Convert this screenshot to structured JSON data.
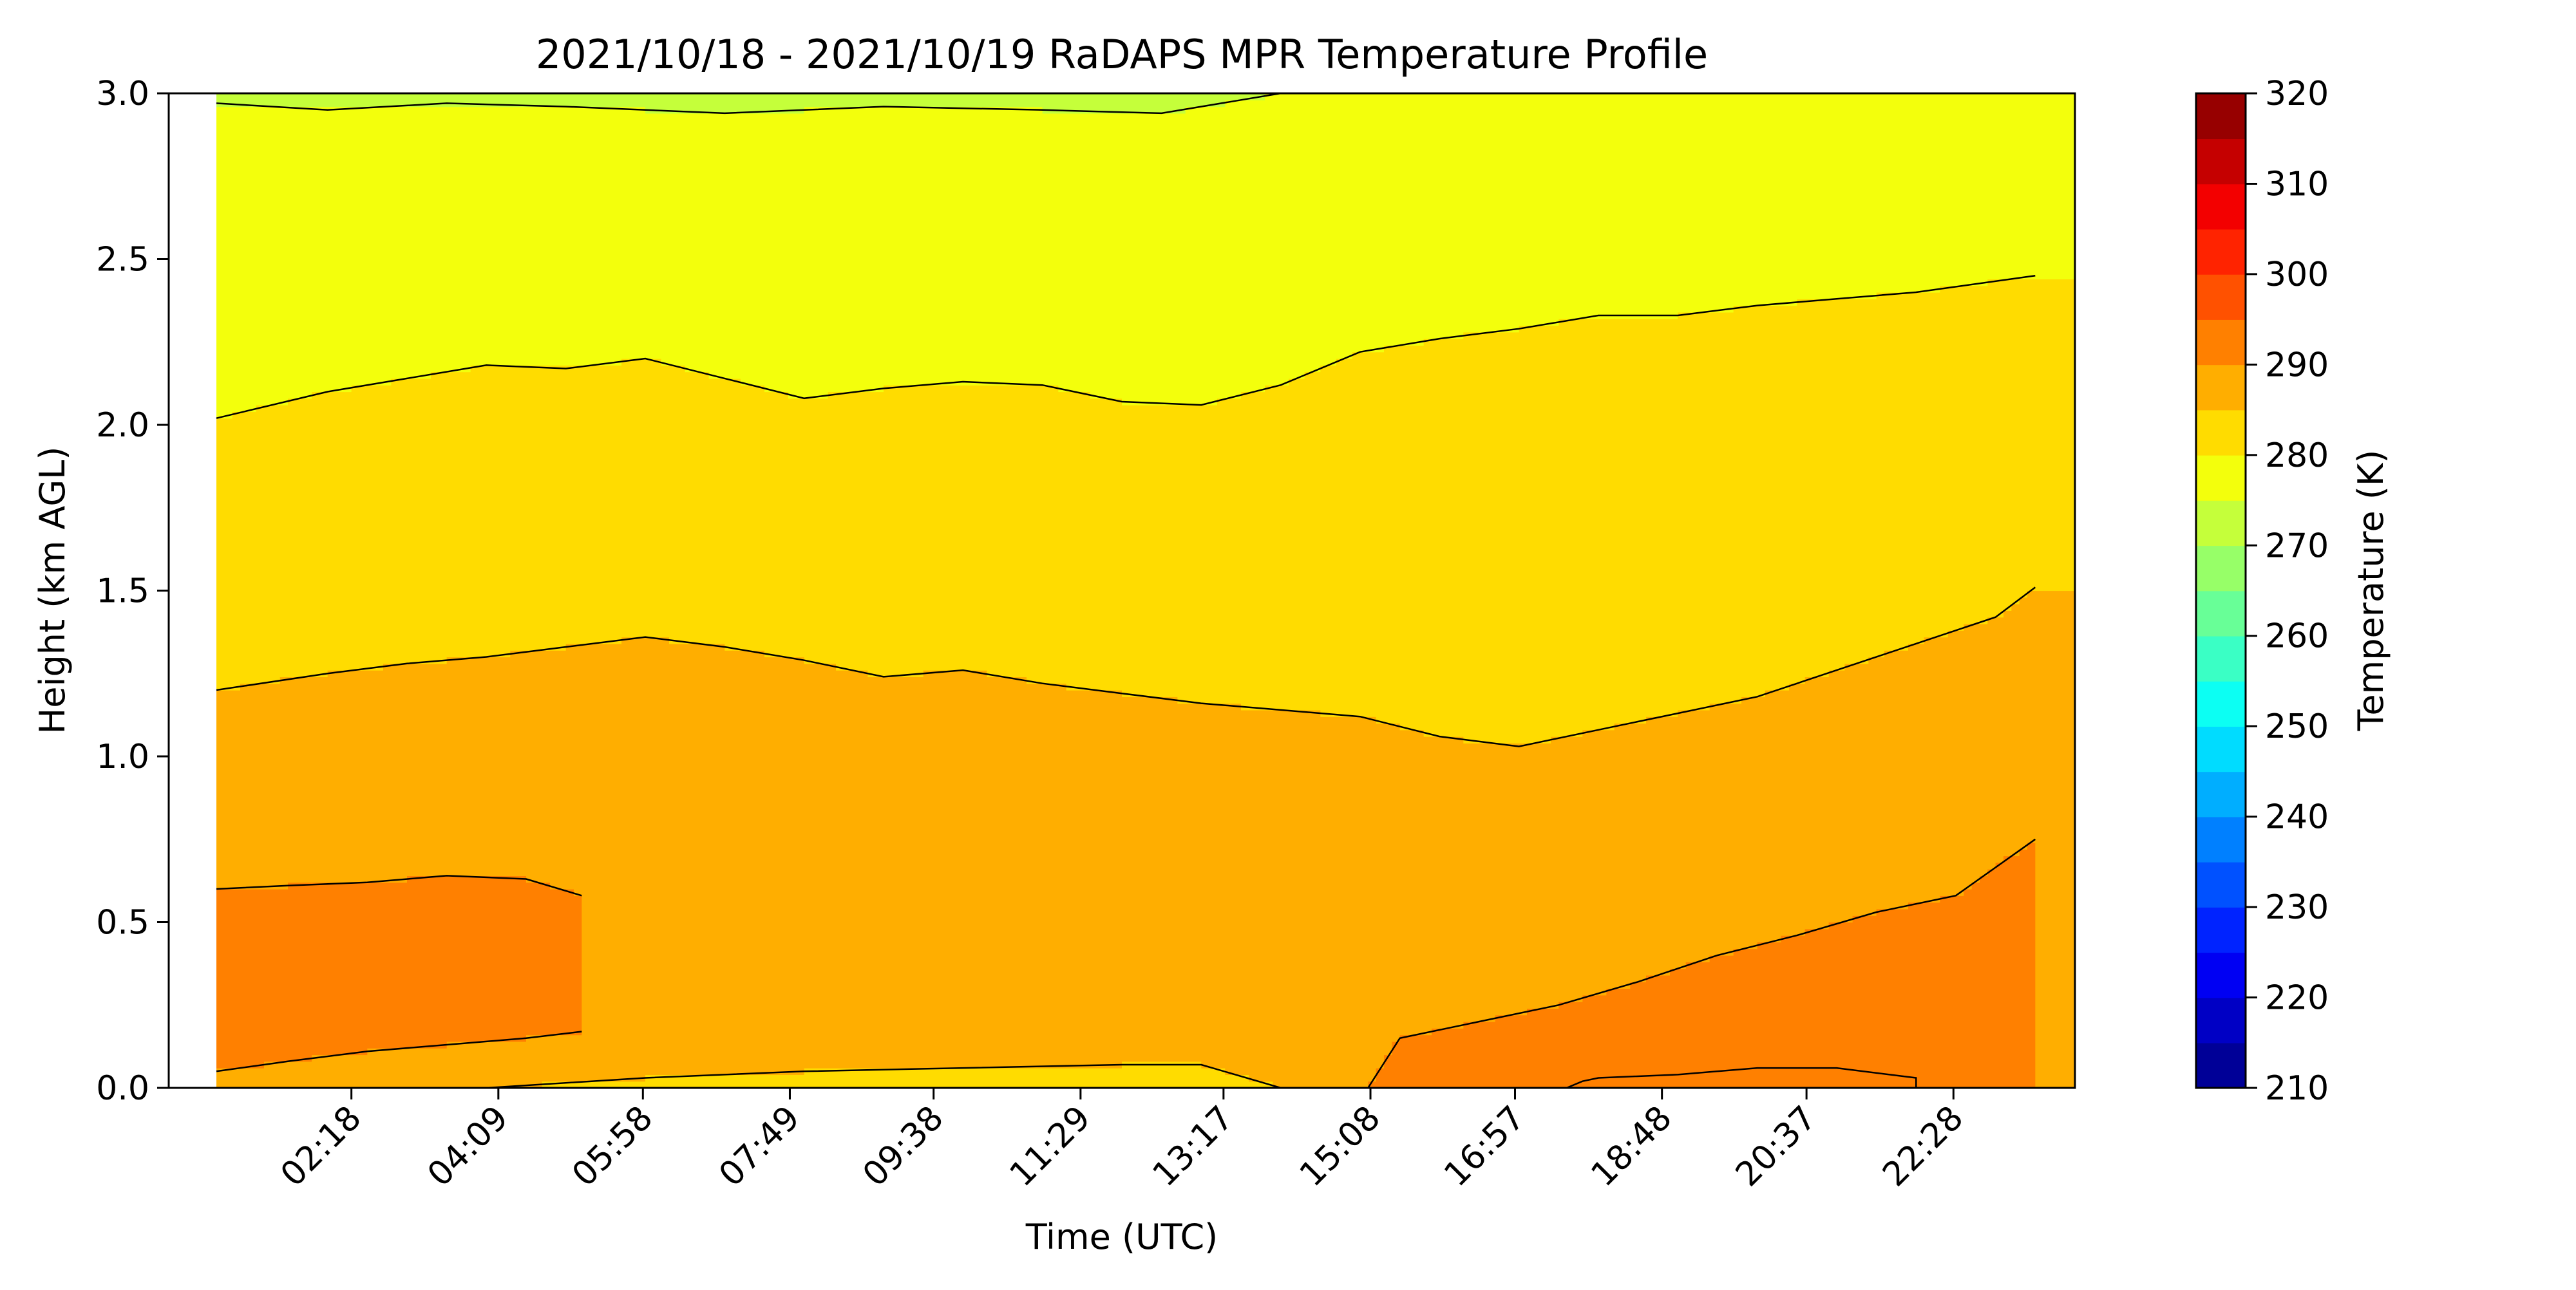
{
  "chart_data": {
    "type": "contourf",
    "title": "2021/10/18 - 2021/10/19 RaDAPS MPR Temperature Profile",
    "xlabel": "Time (UTC)",
    "ylabel": "Height (km AGL)",
    "x_tick_labels": [
      "02:18",
      "04:09",
      "05:58",
      "07:49",
      "09:38",
      "11:29",
      "13:17",
      "15:08",
      "16:57",
      "18:48",
      "20:37",
      "22:28"
    ],
    "x_tick_hours": [
      2.3,
      4.15,
      5.97,
      7.82,
      9.63,
      11.48,
      13.28,
      15.13,
      16.95,
      18.8,
      20.62,
      22.47
    ],
    "x_range_hours": [
      0.0,
      24.0
    ],
    "data_start_hour": 0.6,
    "y_ticks": [
      "0.0",
      "0.5",
      "1.0",
      "1.5",
      "2.0",
      "2.5",
      "3.0"
    ],
    "ylim": [
      0.0,
      3.0
    ],
    "colorbar": {
      "label": "Temperature (K)",
      "range": [
        210,
        320
      ],
      "step": 5,
      "tick_labels": [
        "210",
        "220",
        "230",
        "240",
        "250",
        "260",
        "270",
        "280",
        "290",
        "300",
        "310",
        "320"
      ],
      "colormap": "jet"
    },
    "contour_levels_k": [
      275,
      280,
      285,
      290,
      295
    ],
    "contour_boundaries": [
      {
        "name": "295 K",
        "points": [
          [
            22.0,
            0.0
          ],
          [
            22.0,
            0.03
          ],
          [
            21.0,
            0.06
          ],
          [
            20.0,
            0.06
          ],
          [
            19.0,
            0.04
          ],
          [
            18.0,
            0.03
          ],
          [
            17.8,
            0.02
          ],
          [
            17.6,
            0.0
          ]
        ]
      },
      {
        "name": "290 K upper",
        "points": [
          [
            0.6,
            0.6
          ],
          [
            1.5,
            0.61
          ],
          [
            2.5,
            0.62
          ],
          [
            3.5,
            0.64
          ],
          [
            4.5,
            0.63
          ],
          [
            5.2,
            0.58
          ]
        ]
      },
      {
        "name": "290 K lower",
        "points": [
          [
            0.6,
            0.05
          ],
          [
            1.5,
            0.08
          ],
          [
            2.5,
            0.11
          ],
          [
            3.5,
            0.13
          ],
          [
            4.5,
            0.15
          ],
          [
            5.2,
            0.17
          ]
        ]
      },
      {
        "name": "290 K east",
        "points": [
          [
            15.1,
            0.0
          ],
          [
            15.5,
            0.15
          ],
          [
            16.5,
            0.2
          ],
          [
            17.5,
            0.25
          ],
          [
            18.5,
            0.32
          ],
          [
            19.5,
            0.4
          ],
          [
            20.5,
            0.46
          ],
          [
            21.5,
            0.53
          ],
          [
            22.5,
            0.58
          ],
          [
            23.5,
            0.75
          ]
        ]
      },
      {
        "name": "285 K ground",
        "points": [
          [
            4.0,
            0.0
          ],
          [
            6.0,
            0.03
          ],
          [
            8.0,
            0.05
          ],
          [
            10.0,
            0.06
          ],
          [
            12.0,
            0.07
          ],
          [
            13.0,
            0.07
          ],
          [
            14.0,
            0.0
          ]
        ]
      },
      {
        "name": "280 K",
        "points": [
          [
            0.6,
            1.2
          ],
          [
            2.0,
            1.25
          ],
          [
            3.0,
            1.28
          ],
          [
            4.0,
            1.3
          ],
          [
            5.0,
            1.33
          ],
          [
            6.0,
            1.36
          ],
          [
            7.0,
            1.33
          ],
          [
            8.0,
            1.29
          ],
          [
            9.0,
            1.24
          ],
          [
            10.0,
            1.26
          ],
          [
            11.0,
            1.22
          ],
          [
            12.0,
            1.19
          ],
          [
            13.0,
            1.16
          ],
          [
            14.0,
            1.14
          ],
          [
            15.0,
            1.12
          ],
          [
            16.0,
            1.06
          ],
          [
            17.0,
            1.03
          ],
          [
            18.0,
            1.08
          ],
          [
            19.0,
            1.13
          ],
          [
            20.0,
            1.18
          ],
          [
            21.0,
            1.26
          ],
          [
            22.0,
            1.34
          ],
          [
            23.0,
            1.42
          ],
          [
            23.5,
            1.51
          ]
        ]
      },
      {
        "name": "275 K",
        "points": [
          [
            0.6,
            2.02
          ],
          [
            2.0,
            2.1
          ],
          [
            3.0,
            2.14
          ],
          [
            4.0,
            2.18
          ],
          [
            5.0,
            2.17
          ],
          [
            6.0,
            2.2
          ],
          [
            7.0,
            2.14
          ],
          [
            8.0,
            2.08
          ],
          [
            9.0,
            2.11
          ],
          [
            10.0,
            2.13
          ],
          [
            11.0,
            2.12
          ],
          [
            12.0,
            2.07
          ],
          [
            13.0,
            2.06
          ],
          [
            14.0,
            2.12
          ],
          [
            15.0,
            2.22
          ],
          [
            16.0,
            2.26
          ],
          [
            17.0,
            2.29
          ],
          [
            18.0,
            2.33
          ],
          [
            19.0,
            2.33
          ],
          [
            20.0,
            2.36
          ],
          [
            21.0,
            2.38
          ],
          [
            22.0,
            2.4
          ],
          [
            23.5,
            2.45
          ]
        ]
      },
      {
        "name": "270 K",
        "points": [
          [
            0.6,
            2.97
          ],
          [
            2.0,
            2.95
          ],
          [
            3.5,
            2.97
          ],
          [
            5.0,
            2.96
          ],
          [
            7.0,
            2.94
          ],
          [
            9.0,
            2.96
          ],
          [
            11.0,
            2.95
          ],
          [
            12.5,
            2.94
          ],
          [
            13.5,
            2.98
          ],
          [
            14.0,
            3.0
          ]
        ]
      }
    ]
  }
}
